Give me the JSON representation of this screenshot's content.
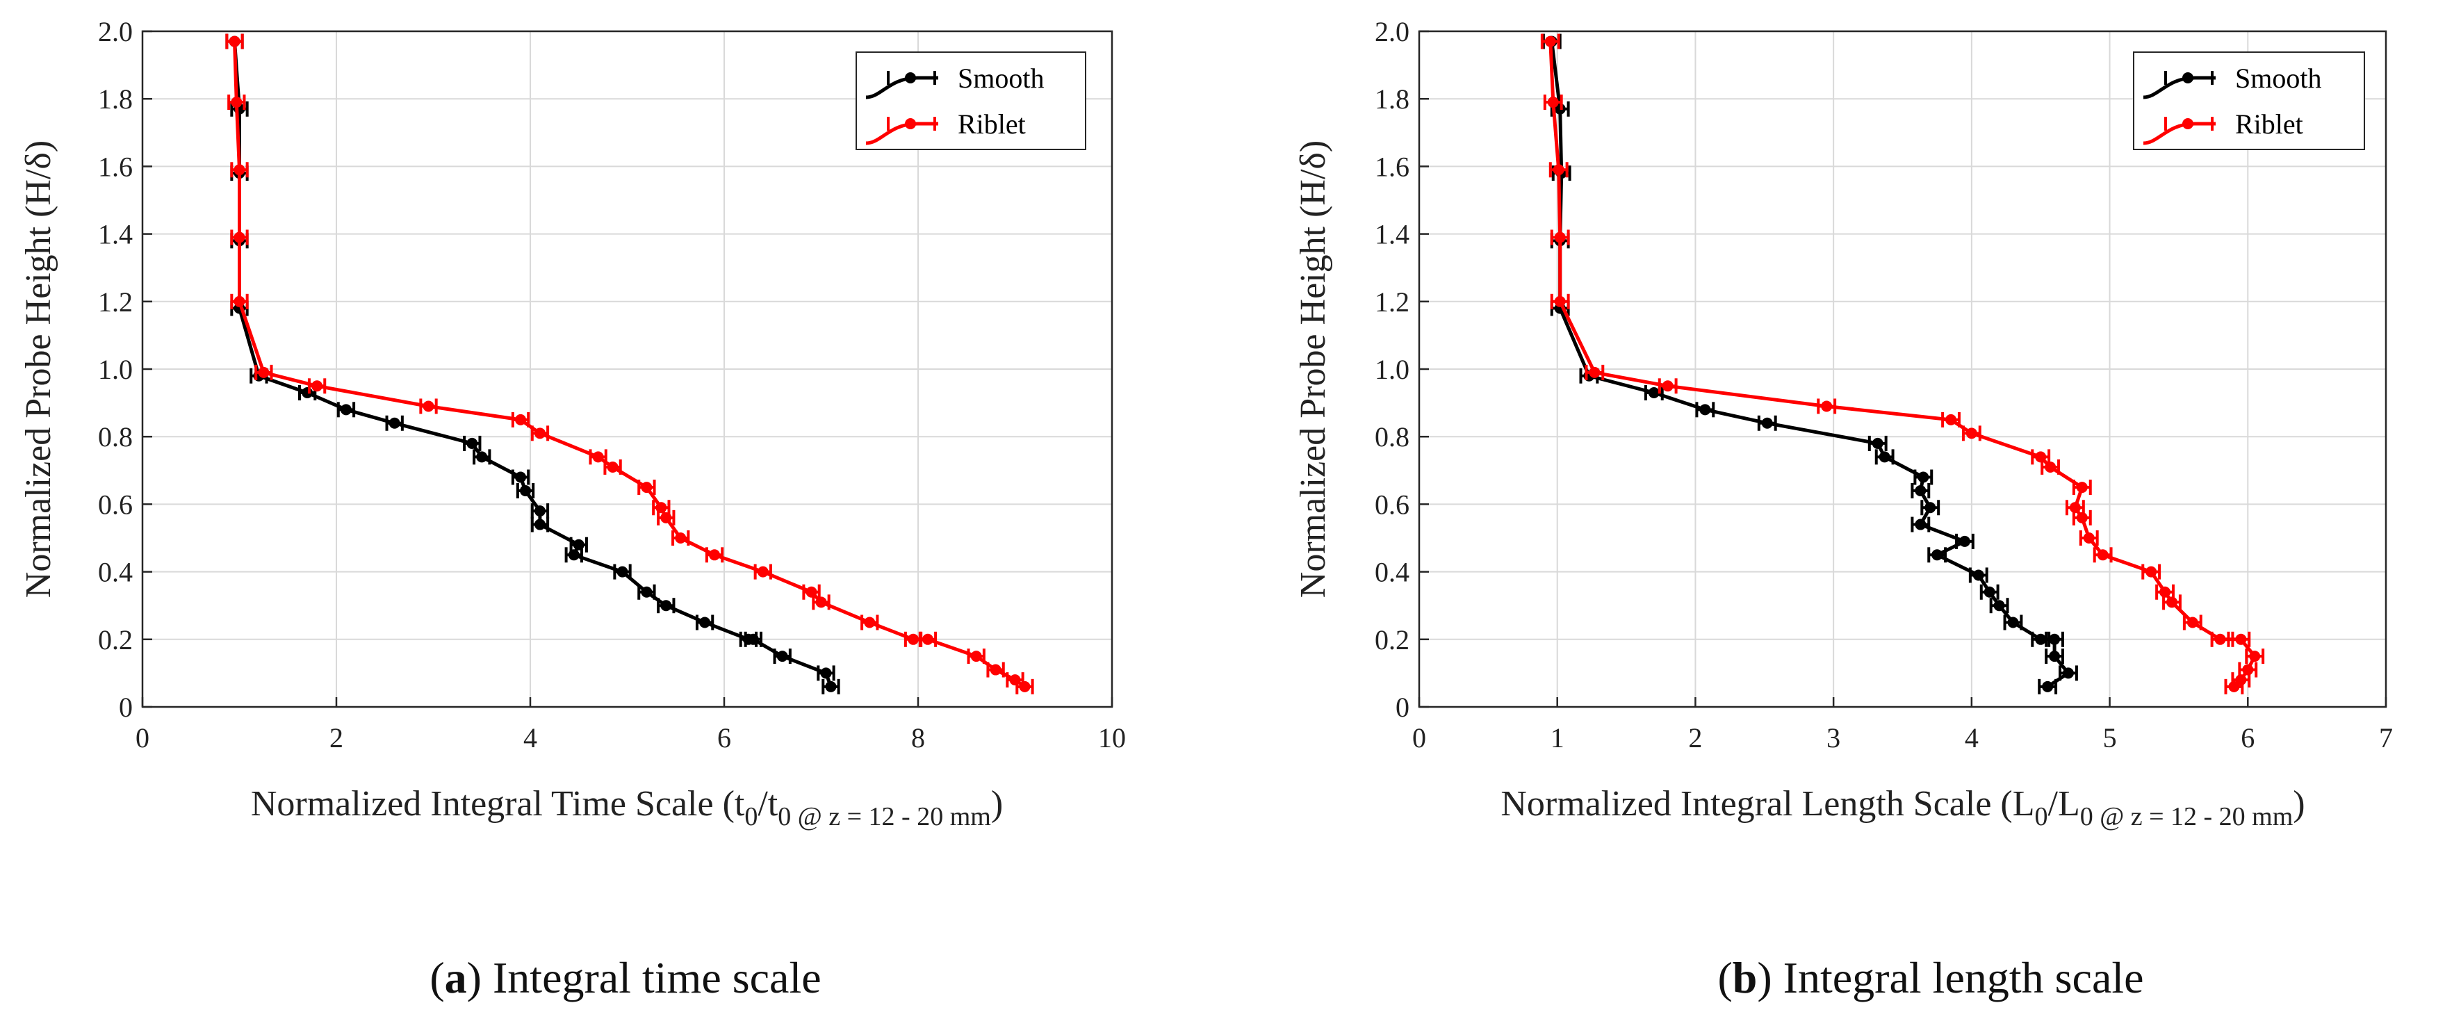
{
  "chart_data": [
    {
      "type": "line",
      "id": "a",
      "xlabel": {
        "main": "Normalized Integral Time Scale (t",
        "s1": "0",
        "mid": "/t",
        "s2": "0 @ z = 12 - 20 mm",
        "close": ")"
      },
      "ylabel": "Normalized Probe Height (H/δ)",
      "xlim": [
        0,
        10
      ],
      "ylim": [
        0,
        2
      ],
      "xticks": [
        "0",
        "2",
        "4",
        "6",
        "8",
        "10"
      ],
      "yticks": [
        "0",
        "0.2",
        "0.4",
        "0.6",
        "0.8",
        "1.0",
        "1.2",
        "1.4",
        "1.6",
        "1.8",
        "2.0"
      ],
      "grid": true,
      "legend_position": "top-right",
      "caption": {
        "label": "a",
        "text": " Integral time scale"
      },
      "series": [
        {
          "name": "Smooth",
          "color": "#000000",
          "x_err": 0.08,
          "x": [
            0.95,
            1.0,
            1.0,
            1.0,
            1.0,
            1.2,
            1.7,
            2.1,
            2.6,
            3.4,
            3.5,
            3.9,
            3.95,
            4.1,
            4.1,
            4.5,
            4.45,
            4.95,
            5.2,
            5.4,
            5.8,
            6.25,
            6.3,
            6.6,
            7.05,
            7.1
          ],
          "y": [
            1.97,
            1.77,
            1.58,
            1.38,
            1.18,
            0.98,
            0.93,
            0.88,
            0.84,
            0.78,
            0.74,
            0.68,
            0.64,
            0.58,
            0.54,
            0.48,
            0.45,
            0.4,
            0.34,
            0.3,
            0.25,
            0.2,
            0.2,
            0.15,
            0.1,
            0.06
          ]
        },
        {
          "name": "Riblet",
          "color": "#ff0000",
          "x_err": 0.08,
          "x": [
            0.95,
            0.97,
            1.0,
            1.0,
            1.0,
            1.25,
            1.8,
            2.95,
            3.9,
            4.1,
            4.7,
            4.85,
            5.2,
            5.35,
            5.4,
            5.55,
            5.9,
            6.4,
            6.9,
            7.0,
            7.5,
            7.95,
            8.1,
            8.6,
            8.8,
            9.0,
            9.1
          ],
          "y": [
            1.97,
            1.79,
            1.59,
            1.39,
            1.2,
            0.99,
            0.95,
            0.89,
            0.85,
            0.81,
            0.74,
            0.71,
            0.65,
            0.59,
            0.56,
            0.5,
            0.45,
            0.4,
            0.34,
            0.31,
            0.25,
            0.2,
            0.2,
            0.15,
            0.11,
            0.08,
            0.06
          ]
        }
      ]
    },
    {
      "type": "line",
      "id": "b",
      "xlabel": {
        "main": "Normalized Integral Length Scale (L",
        "s1": "0",
        "mid": "/L",
        "s2": "0 @ z = 12 - 20 mm",
        "close": ")"
      },
      "ylabel": "Normalized Probe Height (H/δ)",
      "xlim": [
        0,
        7
      ],
      "ylim": [
        0,
        2
      ],
      "xticks": [
        "0",
        "1",
        "2",
        "3",
        "4",
        "5",
        "6",
        "7"
      ],
      "yticks": [
        "0",
        "0.2",
        "0.4",
        "0.6",
        "0.8",
        "1.0",
        "1.2",
        "1.4",
        "1.6",
        "1.8",
        "2.0"
      ],
      "grid": true,
      "legend_position": "top-right",
      "caption": {
        "label": "b",
        "text": " Integral length scale"
      },
      "series": [
        {
          "name": "Smooth",
          "color": "#000000",
          "x_err": 0.06,
          "x": [
            0.96,
            1.02,
            1.03,
            1.02,
            1.02,
            1.23,
            1.7,
            2.07,
            2.52,
            3.32,
            3.37,
            3.65,
            3.63,
            3.7,
            3.63,
            3.95,
            3.75,
            4.05,
            4.13,
            4.2,
            4.3,
            4.5,
            4.6,
            4.6,
            4.7,
            4.55
          ],
          "y": [
            1.97,
            1.77,
            1.58,
            1.38,
            1.18,
            0.98,
            0.93,
            0.88,
            0.84,
            0.78,
            0.74,
            0.68,
            0.64,
            0.59,
            0.54,
            0.49,
            0.45,
            0.39,
            0.34,
            0.3,
            0.25,
            0.2,
            0.2,
            0.15,
            0.1,
            0.06
          ]
        },
        {
          "name": "Riblet",
          "color": "#ff0000",
          "x_err": 0.06,
          "x": [
            0.95,
            0.97,
            1.01,
            1.02,
            1.02,
            1.27,
            1.8,
            2.95,
            3.85,
            4.0,
            4.5,
            4.57,
            4.8,
            4.75,
            4.8,
            4.85,
            4.95,
            5.3,
            5.4,
            5.45,
            5.6,
            5.8,
            5.95,
            6.05,
            6.0,
            5.95,
            5.9
          ],
          "y": [
            1.97,
            1.79,
            1.59,
            1.39,
            1.2,
            0.99,
            0.95,
            0.89,
            0.85,
            0.81,
            0.74,
            0.71,
            0.65,
            0.59,
            0.56,
            0.5,
            0.45,
            0.4,
            0.34,
            0.31,
            0.25,
            0.2,
            0.2,
            0.15,
            0.11,
            0.08,
            0.06
          ]
        }
      ]
    }
  ]
}
